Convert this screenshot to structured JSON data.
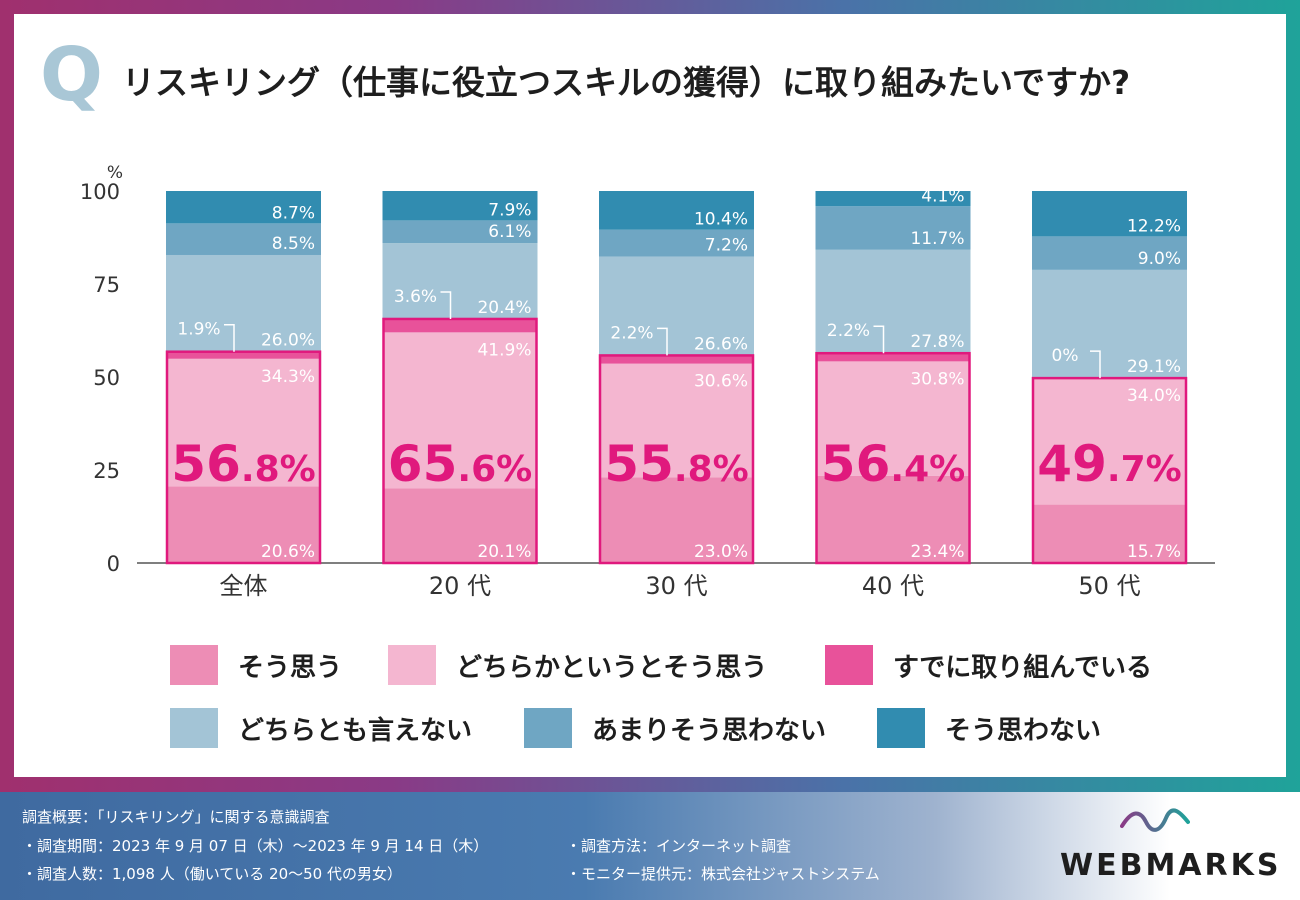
{
  "question": {
    "mark": "Q",
    "text": "リスキリング（仕事に役立つスキルの獲得）に取り組みたいですか?"
  },
  "colors": {
    "sou_omou": "#ed8db5",
    "dochiraka": "#f4b6d0",
    "sudeni": "#e8529a",
    "dochiratomo": "#a3c4d6",
    "amari": "#6fa6c3",
    "sou_omowanai": "#318cb0",
    "highlight": "#e0197d"
  },
  "chart_data": {
    "type": "bar",
    "stacked": true,
    "ylabel": "%",
    "ylim": [
      0,
      100
    ],
    "yticks": [
      0,
      25,
      50,
      75,
      100
    ],
    "categories": [
      "全体",
      "20 代",
      "30 代",
      "40 代",
      "50 代"
    ],
    "series": [
      {
        "name": "そう思う",
        "key": "sou_omou",
        "values": [
          20.6,
          20.1,
          23.0,
          23.4,
          15.7
        ],
        "labels": [
          "20.6%",
          "20.1%",
          "23.0%",
          "23.4%",
          "15.7%"
        ]
      },
      {
        "name": "どちらかというとそう思う",
        "key": "dochiraka",
        "values": [
          34.3,
          41.9,
          30.6,
          30.8,
          34.0
        ],
        "labels": [
          "34.3%",
          "41.9%",
          "30.6%",
          "30.8%",
          "34.0%"
        ]
      },
      {
        "name": "すでに取り組んでいる",
        "key": "sudeni",
        "values": [
          1.9,
          3.6,
          2.2,
          2.2,
          0
        ],
        "labels": [
          "1.9%",
          "3.6%",
          "2.2%",
          "2.2%",
          "0%"
        ]
      },
      {
        "name": "どちらとも言えない",
        "key": "dochiratomo",
        "values": [
          26.0,
          20.4,
          26.6,
          27.8,
          29.1
        ],
        "labels": [
          "26.0%",
          "20.4%",
          "26.6%",
          "27.8%",
          "29.1%"
        ]
      },
      {
        "name": "あまりそう思わない",
        "key": "amari",
        "values": [
          8.5,
          6.1,
          7.2,
          11.7,
          9.0
        ],
        "labels": [
          "8.5%",
          "6.1%",
          "7.2%",
          "11.7%",
          "9.0%"
        ]
      },
      {
        "name": "そう思わない",
        "key": "sou_omowanai",
        "values": [
          8.7,
          7.9,
          10.4,
          4.1,
          12.2
        ],
        "labels": [
          "8.7%",
          "7.9%",
          "10.4%",
          "4.1%",
          "12.2%"
        ]
      }
    ],
    "totals": [
      {
        "value": 56.8,
        "int": "56",
        "dec": ".8%"
      },
      {
        "value": 65.6,
        "int": "65",
        "dec": ".6%"
      },
      {
        "value": 55.8,
        "int": "55",
        "dec": ".8%"
      },
      {
        "value": 56.4,
        "int": "56",
        "dec": ".4%"
      },
      {
        "value": 49.7,
        "int": "49",
        "dec": ".7%"
      }
    ]
  },
  "legend": [
    {
      "label": "そう思う",
      "key": "sou_omou"
    },
    {
      "label": "どちらかというとそう思う",
      "key": "dochiraka"
    },
    {
      "label": "すでに取り組んでいる",
      "key": "sudeni"
    },
    {
      "label": "どちらとも言えない",
      "key": "dochiratomo"
    },
    {
      "label": "あまりそう思わない",
      "key": "amari"
    },
    {
      "label": "そう思わない",
      "key": "sou_omowanai"
    }
  ],
  "footer": {
    "title": "調査概要：「リスキリング」に関する意識調査",
    "period": "・調査期間：2023 年 9 月 07 日（木）〜2023 年 9 月 14 日（木）",
    "count": "・調査人数：1,098 人（働いている 20〜50 代の男女）",
    "method": "・調査方法：インターネット調査",
    "provider": "・モニター提供元：株式会社ジャストシステム"
  },
  "logo": {
    "text": "WEBMARKS"
  }
}
